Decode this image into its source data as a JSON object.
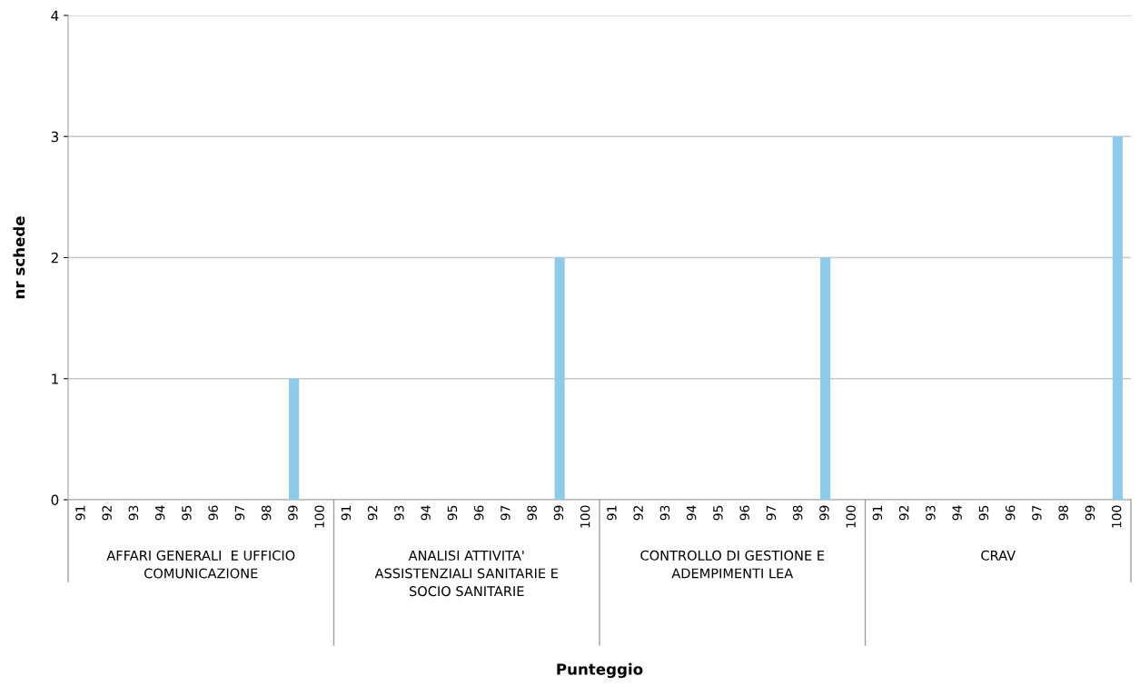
{
  "chart_data": {
    "type": "bar",
    "ylabel": "nr schede",
    "categories": [
      "91",
      "92",
      "93",
      "94",
      "95",
      "96",
      "97",
      "98",
      "99",
      "100",
      "91",
      "92",
      "93",
      "94",
      "95",
      "96",
      "97",
      "98",
      "99",
      "100",
      "91",
      "92",
      "93",
      "94",
      "95",
      "96",
      "97",
      "98",
      "99",
      "100",
      "91",
      "92",
      "93",
      "94",
      "95",
      "96",
      "97",
      "98",
      "99",
      "100"
    ],
    "values": [
      0,
      0,
      0,
      0,
      0,
      0,
      0,
      0,
      1,
      0,
      0,
      0,
      0,
      0,
      0,
      0,
      0,
      0,
      2,
      0,
      0,
      0,
      0,
      0,
      0,
      0,
      0,
      0,
      2,
      0,
      0,
      0,
      0,
      0,
      0,
      0,
      0,
      0,
      0,
      3
    ],
    "color": "#8ecbea",
    "annotations": [
      "AFFARI GENERALI  E UFFICIO\nCOMUNICAZIONE",
      "ANALISI ATTIVITA'\nASSISTENZIALI SANITARIE E\nSOCIO SANITARIE",
      "CONTROLLO DI GESTIONE E\nADEMPIMENTI LEA",
      "CRAV",
      "Punteggio"
    ],
    "ylim": [
      0,
      4
    ],
    "yticks": [
      0,
      1,
      2,
      3,
      4
    ],
    "grid": "y"
  }
}
